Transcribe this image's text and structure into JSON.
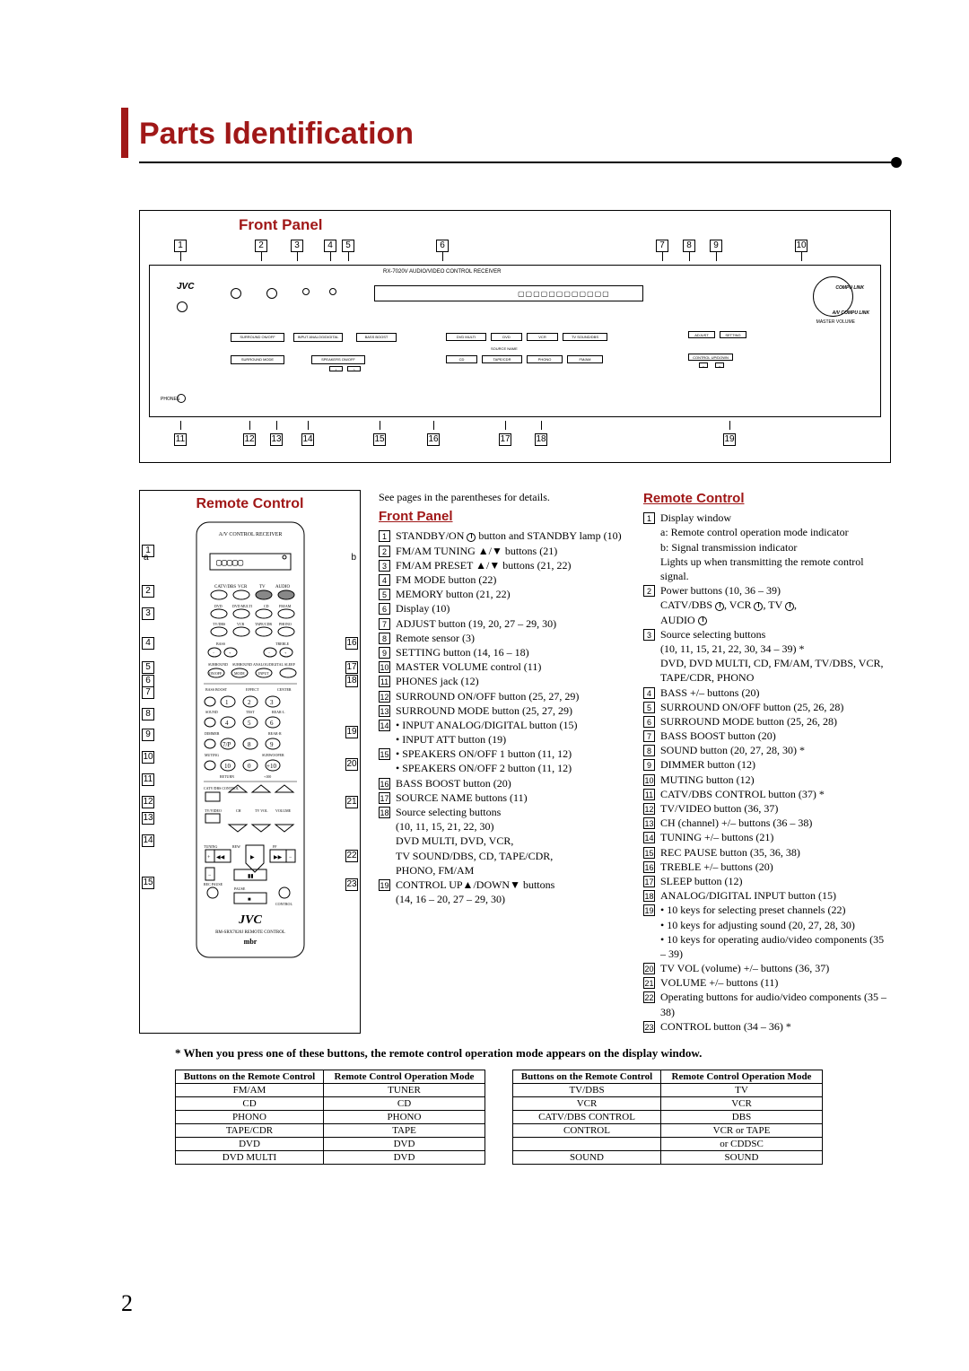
{
  "title": "Parts Identification",
  "page_number": "2",
  "colors": {
    "accent": "#a01818",
    "text": "#000000",
    "bg": "#ffffff"
  },
  "front_panel": {
    "heading": "Front Panel",
    "model_text": "RX-7020V  AUDIO/VIDEO CONTROL RECEIVER",
    "brand": "JVC",
    "compu_link": "COMPU LINK",
    "av_compu_link": "A/V COMPU LINK",
    "master_volume": "MASTER VOLUME",
    "phones": "PHONES",
    "top_callouts": [
      "1",
      "2",
      "3",
      "4",
      "5",
      "6",
      "7",
      "8",
      "9",
      "10"
    ],
    "bottom_callouts": [
      "11",
      "12",
      "13",
      "14",
      "15",
      "16",
      "17",
      "18",
      "19"
    ]
  },
  "remote": {
    "heading": "Remote Control",
    "header_text": "A/V CONTROL RECEIVER",
    "brand": "JVC",
    "model": "RM-SRX7020J REMOTE CONTROL",
    "mbr": "mbr",
    "left_callouts": [
      "1",
      "2",
      "3",
      "4",
      "5",
      "6",
      "7",
      "8",
      "9",
      "10",
      "11",
      "12",
      "13",
      "14",
      "15"
    ],
    "right_callouts": [
      "16",
      "17",
      "18",
      "19",
      "20",
      "21",
      "22",
      "23"
    ],
    "a_label": "a",
    "b_label": "b"
  },
  "intro": "See pages in the parentheses for details.",
  "front_panel_col_heading": "Front Panel",
  "front_panel_items": [
    {
      "n": "1",
      "t": "STANDBY/ON  button and STANDBY lamp (10)",
      "power": true
    },
    {
      "n": "2",
      "t": "FM/AM TUNING ▲/▼ buttons (21)"
    },
    {
      "n": "3",
      "t": "FM/AM PRESET ▲/▼ buttons (21, 22)"
    },
    {
      "n": "4",
      "t": "FM MODE button (22)"
    },
    {
      "n": "5",
      "t": "MEMORY button (21, 22)"
    },
    {
      "n": "6",
      "t": "Display (10)"
    },
    {
      "n": "7",
      "t": "ADJUST button (19, 20, 27 – 29, 30)"
    },
    {
      "n": "8",
      "t": "Remote sensor (3)"
    },
    {
      "n": "9",
      "t": "SETTING button (14, 16 – 18)"
    },
    {
      "n": "10",
      "t": "MASTER VOLUME control (11)"
    },
    {
      "n": "11",
      "t": "PHONES jack (12)"
    },
    {
      "n": "12",
      "t": "SURROUND ON/OFF button (25, 27, 29)"
    },
    {
      "n": "13",
      "t": "SURROUND MODE button (25, 27, 29)"
    },
    {
      "n": "14",
      "t": "• INPUT ANALOG/DIGITAL button (15)",
      "sub": [
        "• INPUT ATT button (19)"
      ]
    },
    {
      "n": "15",
      "t": "• SPEAKERS ON/OFF 1 button (11, 12)",
      "sub": [
        "• SPEAKERS ON/OFF 2 button (11, 12)"
      ]
    },
    {
      "n": "16",
      "t": "BASS BOOST button (20)"
    },
    {
      "n": "17",
      "t": "SOURCE NAME buttons (11)"
    },
    {
      "n": "18",
      "t": "Source selecting buttons",
      "sub": [
        "(10, 11, 15, 21, 22, 30)",
        "DVD MULTI, DVD, VCR,",
        "TV SOUND/DBS, CD, TAPE/CDR,",
        "PHONO, FM/AM"
      ]
    },
    {
      "n": "19",
      "t": "CONTROL UP▲/DOWN▼ buttons",
      "sub": [
        "(14, 16 – 20, 27 – 29, 30)"
      ]
    }
  ],
  "remote_col_heading": "Remote Control",
  "remote_items": [
    {
      "n": "1",
      "t": "Display window",
      "sub": [
        "a: Remote control operation mode indicator",
        "b: Signal transmission indicator",
        "    Lights up when transmitting the remote control signal."
      ]
    },
    {
      "n": "2",
      "t": "Power buttons (10, 36 – 39)",
      "sub_power": "CATV/DBS , VCR , TV , AUDIO "
    },
    {
      "n": "3",
      "t": "Source selecting buttons",
      "sub": [
        "(10, 11, 15, 21, 22, 30, 34 – 39) *",
        "DVD, DVD MULTI, CD, FM/AM, TV/DBS, VCR, TAPE/CDR, PHONO"
      ]
    },
    {
      "n": "4",
      "t": "BASS +/– buttons (20)"
    },
    {
      "n": "5",
      "t": "SURROUND ON/OFF button (25, 26, 28)"
    },
    {
      "n": "6",
      "t": "SURROUND MODE button (25, 26, 28)"
    },
    {
      "n": "7",
      "t": "BASS BOOST button (20)"
    },
    {
      "n": "8",
      "t": "SOUND button (20, 27, 28, 30) *"
    },
    {
      "n": "9",
      "t": "DIMMER button (12)"
    },
    {
      "n": "10",
      "t": "MUTING button (12)"
    },
    {
      "n": "11",
      "t": "CATV/DBS CONTROL button (37) *"
    },
    {
      "n": "12",
      "t": "TV/VIDEO button (36, 37)"
    },
    {
      "n": "13",
      "t": "CH (channel) +/– buttons (36 – 38)"
    },
    {
      "n": "14",
      "t": "TUNING +/– buttons (21)"
    },
    {
      "n": "15",
      "t": "REC PAUSE button (35, 36, 38)"
    },
    {
      "n": "16",
      "t": "TREBLE +/– buttons (20)"
    },
    {
      "n": "17",
      "t": "SLEEP button (12)"
    },
    {
      "n": "18",
      "t": "ANALOG/DIGITAL INPUT button (15)"
    },
    {
      "n": "19",
      "t": "• 10 keys for selecting preset channels (22)",
      "sub": [
        "• 10 keys for adjusting sound (20, 27, 28, 30)",
        "• 10 keys for operating audio/video components (35 – 39)"
      ]
    },
    {
      "n": "20",
      "t": "TV VOL (volume) +/– buttons (36, 37)"
    },
    {
      "n": "21",
      "t": "VOLUME +/– buttons (11)"
    },
    {
      "n": "22",
      "t": "Operating buttons for audio/video components (35 – 38)"
    },
    {
      "n": "23",
      "t": "CONTROL button (34 – 36) *"
    }
  ],
  "footnote": "* When you press one of these buttons, the remote control operation mode appears on the display window.",
  "table": {
    "headers": [
      "Buttons on the Remote Control",
      "Remote Control Operation Mode"
    ],
    "left_rows": [
      [
        "FM/AM",
        "TUNER"
      ],
      [
        "CD",
        "CD"
      ],
      [
        "PHONO",
        "PHONO"
      ],
      [
        "TAPE/CDR",
        "TAPE"
      ],
      [
        "DVD",
        "DVD"
      ],
      [
        "DVD MULTI",
        "DVD"
      ]
    ],
    "right_rows": [
      [
        "TV/DBS",
        "TV"
      ],
      [
        "VCR",
        "VCR"
      ],
      [
        "CATV/DBS CONTROL",
        "DBS"
      ],
      [
        "CONTROL",
        "VCR or TAPE"
      ],
      [
        "",
        "or CDDSC"
      ],
      [
        "SOUND",
        "SOUND"
      ]
    ]
  }
}
